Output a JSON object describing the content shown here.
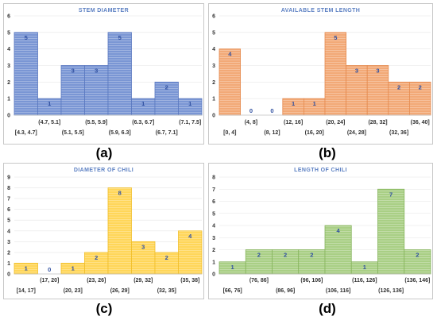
{
  "chart_data": [
    {
      "panel": "(a)",
      "type": "histogram",
      "title": "STEM DIAMETER",
      "ylim": [
        0,
        6
      ],
      "categories": [
        "[4.3, 4.7]",
        "(4.7, 5.1]",
        "(5.1, 5.5]",
        "(5.5, 5.9]",
        "(5.9, 6.3]",
        "(6.3, 6.7]",
        "(6.7, 7.1]",
        "(7.1, 7.5]"
      ],
      "values": [
        5,
        1,
        3,
        3,
        5,
        1,
        2,
        1
      ],
      "color": "#7a96d4",
      "stroke": "#5a78c0",
      "grid": true
    },
    {
      "panel": "(b)",
      "type": "histogram",
      "title": "AVAILABLE STEM LENGTH",
      "ylim": [
        0,
        6
      ],
      "categories": [
        "[0, 4]",
        "(4, 8]",
        "(8, 12]",
        "(12, 16]",
        "(16, 20]",
        "(20, 24]",
        "(24, 28]",
        "(28, 32]",
        "(32, 36]",
        "(36, 40]"
      ],
      "values": [
        4,
        0,
        0,
        1,
        1,
        5,
        3,
        3,
        2,
        2
      ],
      "color": "#f2a977",
      "stroke": "#e58a4f",
      "grid": true
    },
    {
      "panel": "(c)",
      "type": "histogram",
      "title": "DIAMETER OF CHILI",
      "ylim": [
        0,
        9
      ],
      "categories": [
        "[14, 17]",
        "(17, 20]",
        "(20, 23]",
        "(23, 26]",
        "(26, 29]",
        "(29, 32]",
        "(32, 35]",
        "(35, 38]"
      ],
      "values": [
        1,
        0,
        1,
        2,
        8,
        3,
        2,
        4
      ],
      "color": "#ffd659",
      "stroke": "#f0bf2a",
      "grid": true
    },
    {
      "panel": "(d)",
      "type": "histogram",
      "title": "LENGTH OF CHILI",
      "ylim": [
        0,
        8
      ],
      "categories": [
        "[66, 76]",
        "(76, 86]",
        "(86, 96]",
        "(96, 106]",
        "(106, 116]",
        "(116, 126]",
        "(126, 136]",
        "(136, 146]"
      ],
      "values": [
        1,
        2,
        2,
        2,
        4,
        1,
        7,
        2
      ],
      "color": "#a9cf85",
      "stroke": "#86b45d",
      "grid": true
    }
  ]
}
